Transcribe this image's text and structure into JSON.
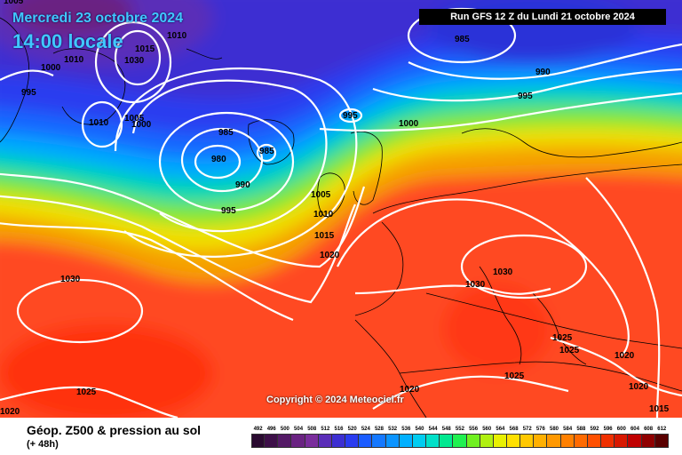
{
  "header": {
    "date_line": "Mercredi 23 octobre 2024",
    "time_line": "14:00 locale",
    "run_info": "Run GFS 12 Z du Lundi 21 octobre 2024"
  },
  "copyright": "Copyright © 2024 Meteociel.fr",
  "legend": {
    "title": "Géop. Z500 & pression au sol",
    "subtitle": "(+ 48h)",
    "scale_values": [
      "492",
      "496",
      "500",
      "504",
      "508",
      "512",
      "516",
      "520",
      "524",
      "528",
      "532",
      "536",
      "540",
      "544",
      "548",
      "552",
      "556",
      "560",
      "564",
      "568",
      "572",
      "576",
      "580",
      "584",
      "588",
      "592",
      "596",
      "600",
      "604",
      "608",
      "612"
    ],
    "scale_colors": [
      "#2a0a30",
      "#3d0f48",
      "#541a66",
      "#6a2382",
      "#7a2d9c",
      "#5a2db8",
      "#3c2fd2",
      "#2a3cf0",
      "#1a5cff",
      "#1478ff",
      "#0a94ff",
      "#00b0ff",
      "#00ccf0",
      "#00e0c8",
      "#00e890",
      "#20f050",
      "#70f020",
      "#b0f010",
      "#e8f000",
      "#ffe000",
      "#ffc800",
      "#ffb000",
      "#ff9800",
      "#ff8000",
      "#ff6a00",
      "#ff5000",
      "#f03000",
      "#d81800",
      "#c00000",
      "#900000",
      "#5a0000"
    ]
  },
  "isobar_labels": [
    {
      "text": "1010"
    },
    {
      "text": "1015"
    },
    {
      "text": "1010"
    },
    {
      "text": "1000"
    },
    {
      "text": "1030"
    },
    {
      "text": "995"
    },
    {
      "text": "1010"
    },
    {
      "text": "1005"
    },
    {
      "text": "1000"
    },
    {
      "text": "985"
    },
    {
      "text": "980"
    },
    {
      "text": "985"
    },
    {
      "text": "990"
    },
    {
      "text": "995"
    },
    {
      "text": "985"
    },
    {
      "text": "990"
    },
    {
      "text": "995"
    },
    {
      "text": "995"
    },
    {
      "text": "1000"
    },
    {
      "text": "1005"
    },
    {
      "text": "1010"
    },
    {
      "text": "1015"
    },
    {
      "text": "1020"
    },
    {
      "text": "1030"
    },
    {
      "text": "1030"
    },
    {
      "text": "1030"
    },
    {
      "text": "1025"
    },
    {
      "text": "1025"
    },
    {
      "text": "1025"
    },
    {
      "text": "1020"
    },
    {
      "text": "1020"
    },
    {
      "text": "1015"
    },
    {
      "text": "1025"
    },
    {
      "text": "1020"
    },
    {
      "text": "1020"
    },
    {
      "text": "1005"
    }
  ]
}
